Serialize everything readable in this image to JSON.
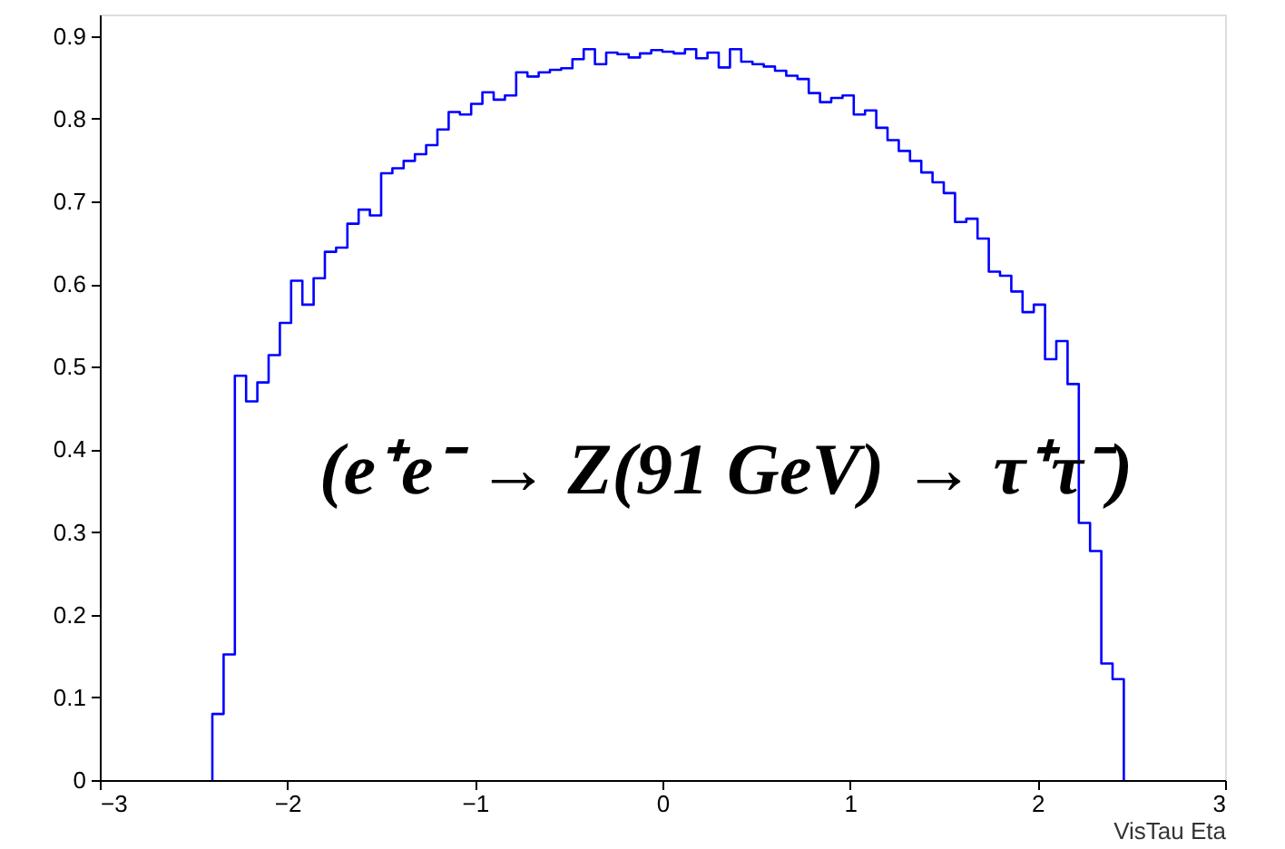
{
  "chart_data": {
    "type": "histogram",
    "xlabel": "VisTau Eta",
    "color": "#0000ff",
    "bins": [
      -2.4,
      -2.34,
      -2.28,
      -2.22,
      -2.16,
      -2.1,
      -2.04,
      -1.98,
      -1.92,
      -1.86,
      -1.8,
      -1.74,
      -1.68,
      -1.62,
      -1.56,
      -1.5,
      -1.44,
      -1.38,
      -1.32,
      -1.26,
      -1.2,
      -1.14,
      -1.08,
      -1.02,
      -0.96,
      -0.9,
      -0.84,
      -0.78,
      -0.72,
      -0.66,
      -0.6,
      -0.54,
      -0.48,
      -0.42,
      -0.36,
      -0.3,
      -0.24,
      -0.18,
      -0.12,
      -0.06,
      0,
      0.06,
      0.12,
      0.18,
      0.24,
      0.3,
      0.36,
      0.42,
      0.48,
      0.54,
      0.6,
      0.66,
      0.72,
      0.78,
      0.84,
      0.9,
      0.96,
      1.02,
      1.08,
      1.14,
      1.2,
      1.26,
      1.32,
      1.38,
      1.44,
      1.5,
      1.56,
      1.62,
      1.68,
      1.74,
      1.8,
      1.86,
      1.92,
      1.98,
      2.04,
      2.1,
      2.16,
      2.22,
      2.28,
      2.34,
      2.4,
      2.46
    ],
    "values": [
      0.08,
      0.152,
      0.489,
      0.458,
      0.481,
      0.514,
      0.553,
      0.604,
      0.575,
      0.607,
      0.639,
      0.644,
      0.673,
      0.69,
      0.683,
      0.734,
      0.74,
      0.749,
      0.757,
      0.768,
      0.787,
      0.808,
      0.805,
      0.818,
      0.832,
      0.823,
      0.828,
      0.856,
      0.851,
      0.856,
      0.859,
      0.861,
      0.872,
      0.884,
      0.866,
      0.88,
      0.878,
      0.874,
      0.879,
      0.883,
      0.881,
      0.879,
      0.884,
      0.873,
      0.88,
      0.862,
      0.884,
      0.869,
      0.866,
      0.863,
      0.858,
      0.852,
      0.848,
      0.831,
      0.82,
      0.825,
      0.828,
      0.805,
      0.81,
      0.789,
      0.774,
      0.761,
      0.749,
      0.735,
      0.723,
      0.71,
      0.675,
      0.679,
      0.655,
      0.615,
      0.61,
      0.591,
      0.566,
      0.575,
      0.509,
      0.531,
      0.479,
      0.311,
      0.277,
      0.141,
      0.122
    ],
    "xlim": [
      -3,
      3
    ],
    "xticks": [
      -3,
      -2,
      -1,
      0,
      1,
      2,
      3
    ],
    "ylim": [
      0,
      0.926
    ],
    "yticks": [
      0,
      0.1,
      0.2,
      0.3,
      0.4,
      0.5,
      0.6,
      0.7,
      0.8,
      0.9
    ],
    "grid": false,
    "annotations": [
      "(e⁺e⁻ → Z(91 GeV) → τ⁺τ⁻)"
    ]
  }
}
